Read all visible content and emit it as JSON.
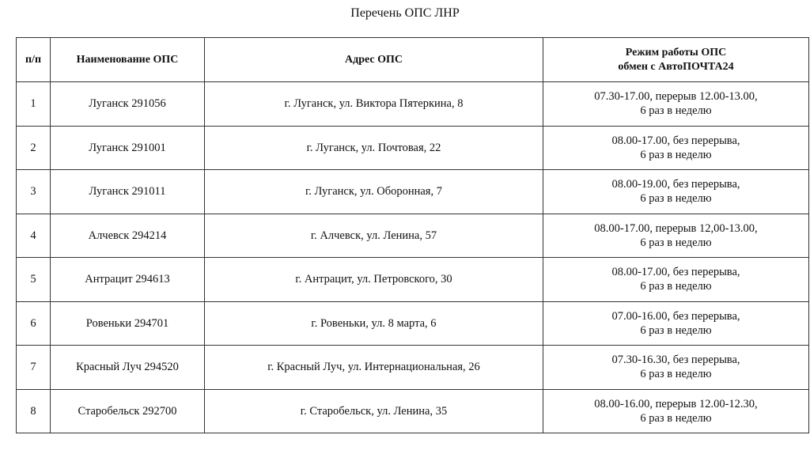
{
  "title": "Перечень ОПС ЛНР",
  "headers": {
    "num": "п/п",
    "name": "Наименование ОПС",
    "address": "Адрес ОПС",
    "schedule_line1": "Режим работы ОПС",
    "schedule_line2": "обмен с АвтоПОЧТА24"
  },
  "rows": [
    {
      "num": "1",
      "name": "Луганск 291056",
      "address": "г. Луганск, ул. Виктора Пятеркина, 8",
      "hours": "07.30-17.00, перерыв 12.00-13.00,",
      "freq": "6 раз в неделю"
    },
    {
      "num": "2",
      "name": "Луганск 291001",
      "address": "г. Луганск, ул. Почтовая, 22",
      "hours": "08.00-17.00, без перерыва,",
      "freq": "6 раз в неделю"
    },
    {
      "num": "3",
      "name": "Луганск 291011",
      "address": "г. Луганск, ул. Оборонная, 7",
      "hours": "08.00-19.00, без перерыва,",
      "freq": "6 раз в неделю"
    },
    {
      "num": "4",
      "name": "Алчевск 294214",
      "address": "г. Алчевск, ул. Ленина, 57",
      "hours": "08.00-17.00, перерыв 12,00-13.00,",
      "freq": "6 раз в неделю"
    },
    {
      "num": "5",
      "name": "Антрацит 294613",
      "address": "г. Антрацит, ул. Петровского, 30",
      "hours": "08.00-17.00, без перерыва,",
      "freq": "6 раз в неделю"
    },
    {
      "num": "6",
      "name": "Ровеньки 294701",
      "address": "г. Ровеньки, ул. 8 марта, 6",
      "hours": "07.00-16.00, без перерыва,",
      "freq": "6 раз в неделю"
    },
    {
      "num": "7",
      "name": "Красный Луч 294520",
      "address": "г. Красный Луч, ул. Интернациональная, 26",
      "hours": "07.30-16.30, без перерыва,",
      "freq": "6 раз в неделю"
    },
    {
      "num": "8",
      "name": "Старобельск 292700",
      "address": "г. Старобельск, ул. Ленина, 35",
      "hours": "08.00-16.00, перерыв 12.00-12.30,",
      "freq": "6 раз в неделю"
    }
  ]
}
